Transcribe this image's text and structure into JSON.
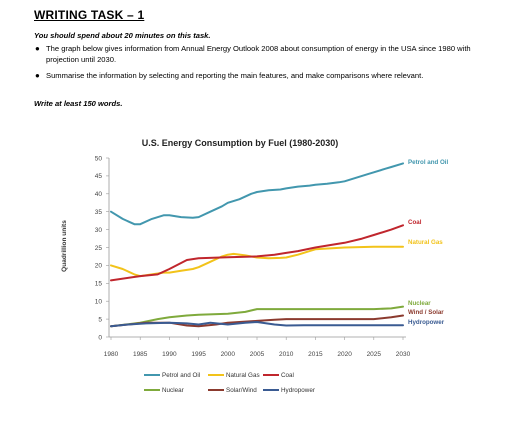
{
  "task": {
    "heading": "WRITING TASK – 1",
    "instruction": "You should spend about 20 minutes on this task.",
    "bullets": [
      "The graph below gives information from Annual Energy Outlook 2008 about consumption of energy in the USA since 1980 with projection until 2030.",
      "Summarise the information by selecting and reporting the main features, and make comparisons where relevant."
    ],
    "word_count": "Write at least 150 words."
  },
  "chart_data": {
    "type": "line",
    "title": "U.S. Energy Consumption by Fuel (1980-2030)",
    "ylabel": "Quadrillion units",
    "xlabel": "",
    "xlim": [
      1980,
      2030
    ],
    "ylim": [
      0,
      50
    ],
    "xticks": [
      "1980",
      "1985",
      "1990",
      "1995",
      "2000",
      "2005",
      "2010",
      "2015",
      "2020",
      "2025",
      "2030"
    ],
    "yticks": [
      "0",
      "5",
      "10",
      "15",
      "20",
      "25",
      "30",
      "35",
      "40",
      "45",
      "50"
    ],
    "grid": false,
    "legend_position": "bottom",
    "series": [
      {
        "name": "Petrol and Oil",
        "end_label": "Petrol and Oil",
        "color": "#4297ae",
        "x": [
          1980,
          1982,
          1984,
          1985,
          1987,
          1989,
          1990,
          1992,
          1994,
          1995,
          1997,
          1999,
          2000,
          2002,
          2004,
          2005,
          2007,
          2009,
          2010,
          2012,
          2014,
          2015,
          2017,
          2019,
          2020,
          2022,
          2024,
          2025,
          2027,
          2028,
          2030
        ],
        "y": [
          35,
          33,
          31.5,
          31.5,
          33,
          34,
          34,
          33.5,
          33.3,
          33.5,
          35,
          36.5,
          37.5,
          38.5,
          40,
          40.5,
          41,
          41.2,
          41.5,
          42,
          42.3,
          42.5,
          42.8,
          43.2,
          43.5,
          44.5,
          45.5,
          46,
          47,
          47.5,
          48.5
        ]
      },
      {
        "name": "Natural Gas",
        "end_label": "Natural Gas",
        "color": "#f2c31a",
        "x": [
          1980,
          1982,
          1984,
          1985,
          1987,
          1989,
          1990,
          1992,
          1994,
          1995,
          1997,
          1999,
          2000,
          2001,
          2003,
          2005,
          2007,
          2009,
          2010,
          2012,
          2014,
          2015,
          2020,
          2025,
          2030
        ],
        "y": [
          20,
          19,
          17.5,
          17,
          17.5,
          18,
          18,
          18.5,
          19,
          19.5,
          21,
          22.5,
          23,
          23.2,
          22.8,
          22.2,
          22,
          22.1,
          22.2,
          23,
          24,
          24.5,
          25,
          25.2,
          25.2
        ]
      },
      {
        "name": "Coal",
        "end_label": "Coal",
        "color": "#c0262d",
        "x": [
          1980,
          1985,
          1988,
          1990,
          1993,
          1995,
          2000,
          2005,
          2008,
          2010,
          2012,
          2015,
          2018,
          2020,
          2023,
          2025,
          2028,
          2030
        ],
        "y": [
          15.8,
          17,
          17.5,
          19,
          21.5,
          22,
          22.3,
          22.5,
          23,
          23.5,
          24,
          25,
          25.8,
          26.3,
          27.5,
          28.5,
          30,
          31.2
        ]
      },
      {
        "name": "Nuclear",
        "end_label": "Nuclear",
        "color": "#7faa3c",
        "x": [
          1980,
          1985,
          1988,
          1990,
          1993,
          1995,
          2000,
          2003,
          2005,
          2008,
          2010,
          2015,
          2020,
          2025,
          2028,
          2030
        ],
        "y": [
          3,
          4,
          5,
          5.5,
          6,
          6.2,
          6.5,
          7,
          7.8,
          7.8,
          7.8,
          7.8,
          7.8,
          7.8,
          8,
          8.5
        ]
      },
      {
        "name": "Solar/Wind",
        "end_label": "Wind / Solar",
        "color": "#8b3a2e",
        "x": [
          1980,
          1983,
          1986,
          1990,
          1993,
          1995,
          1998,
          2000,
          2003,
          2005,
          2008,
          2010,
          2015,
          2020,
          2025,
          2028,
          2030
        ],
        "y": [
          3,
          3.5,
          4,
          4,
          3.2,
          3,
          3.5,
          4,
          4.3,
          4.5,
          4.8,
          5,
          5,
          5,
          5,
          5.5,
          6
        ]
      },
      {
        "name": "Hydropower",
        "end_label": "Hydropower",
        "color": "#3a5b92",
        "x": [
          1980,
          1983,
          1986,
          1990,
          1993,
          1995,
          1997,
          2000,
          2003,
          2005,
          2008,
          2010,
          2013,
          2015,
          2020,
          2025,
          2030
        ],
        "y": [
          3,
          3.5,
          3.8,
          4,
          3.8,
          3.5,
          4,
          3.5,
          4,
          4.2,
          3.5,
          3.2,
          3.3,
          3.3,
          3.3,
          3.3,
          3.3
        ]
      }
    ]
  }
}
